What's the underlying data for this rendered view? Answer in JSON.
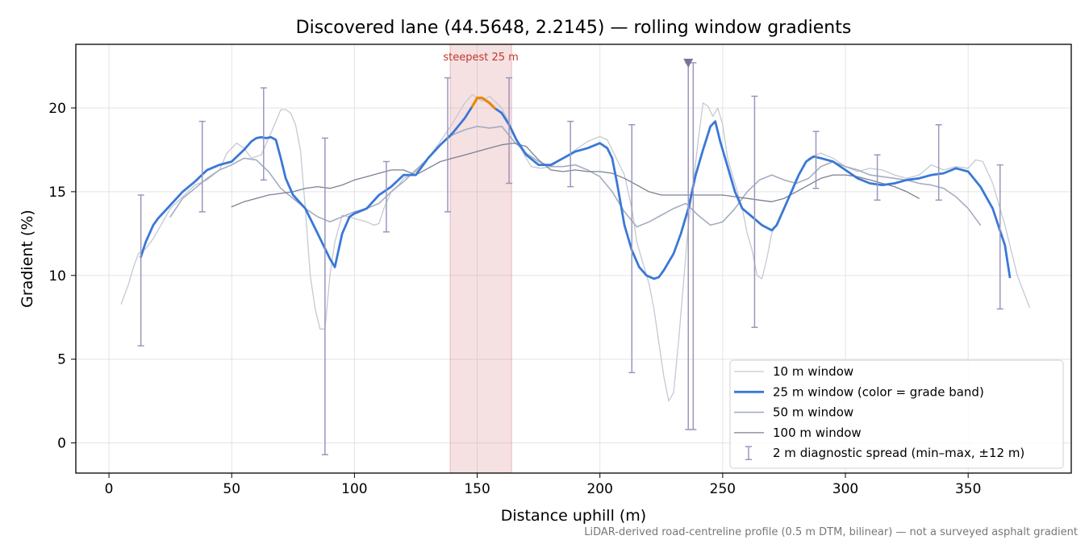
{
  "chart_data": {
    "type": "line",
    "title": "Discovered lane (44.5648, 2.2145) — rolling window gradients",
    "xlabel": "Distance uphill (m)",
    "ylabel": "Gradient (%)",
    "xlim": [
      -13.5,
      392
    ],
    "ylim": [
      -1.8,
      23.8
    ],
    "xticks": [
      0,
      50,
      100,
      150,
      200,
      250,
      300,
      350
    ],
    "yticks": [
      0,
      5,
      10,
      15,
      20
    ],
    "grid": true,
    "legend_position": "lower-right",
    "footnote": "LiDAR-derived road-centreline profile (0.5 m DTM, bilinear) — not a surveyed asphalt gradient",
    "highlight": {
      "x0": 139,
      "x1": 164,
      "label": "steepest 25 m",
      "color": "#d9838a"
    },
    "series": [
      {
        "name": "10 m window",
        "color": "#c4c9d4",
        "width": 1.3,
        "x": [
          5,
          8,
          10,
          12,
          15,
          18,
          20,
          25,
          30,
          35,
          40,
          45,
          48,
          52,
          55,
          58,
          62,
          66,
          68,
          70,
          72,
          74,
          76,
          78,
          80,
          82,
          84,
          86,
          88,
          90,
          92,
          95,
          100,
          105,
          108,
          110,
          112,
          115,
          118,
          120,
          125,
          130,
          135,
          140,
          145,
          148,
          150,
          152,
          155,
          160,
          165,
          168,
          172,
          176,
          180,
          185,
          190,
          195,
          200,
          203,
          205,
          210,
          213,
          215,
          218,
          220,
          222,
          224,
          226,
          228,
          230,
          232,
          234,
          236,
          238,
          240,
          242,
          244,
          246,
          248,
          250,
          252,
          255,
          258,
          260,
          262,
          264,
          266,
          268,
          270,
          275,
          280,
          285,
          290,
          295,
          300,
          305,
          310,
          315,
          320,
          325,
          330,
          335,
          340,
          345,
          350,
          353,
          356,
          360,
          365,
          370,
          375
        ],
        "y": [
          8.3,
          9.5,
          10.5,
          11.3,
          11.6,
          12.2,
          12.7,
          14.0,
          14.7,
          15.4,
          15.7,
          16.3,
          17.3,
          17.9,
          17.6,
          17.0,
          17.2,
          18.5,
          19.2,
          19.9,
          19.9,
          19.7,
          19.0,
          17.5,
          14.0,
          10.0,
          8.0,
          6.8,
          6.8,
          10.0,
          12.0,
          13.6,
          13.4,
          13.2,
          13.0,
          13.1,
          14.0,
          15.0,
          15.4,
          15.8,
          16.2,
          17.0,
          18.0,
          19.1,
          20.3,
          20.8,
          20.6,
          20.4,
          20.7,
          20.0,
          18.5,
          17.5,
          16.5,
          16.4,
          16.5,
          17.0,
          17.5,
          18.0,
          18.3,
          18.1,
          17.5,
          16.0,
          14.0,
          12.0,
          10.5,
          9.5,
          8.0,
          6.0,
          4.0,
          2.5,
          3.0,
          6.0,
          9.5,
          13.0,
          15.5,
          18.0,
          20.3,
          20.1,
          19.5,
          20.0,
          19.0,
          17.0,
          15.5,
          14.0,
          12.5,
          11.5,
          10.0,
          9.8,
          11.0,
          12.5,
          14.0,
          15.8,
          17.0,
          17.3,
          17.0,
          16.5,
          16.2,
          16.4,
          16.3,
          16.0,
          15.8,
          16.0,
          16.6,
          16.3,
          16.5,
          16.4,
          16.9,
          16.8,
          15.5,
          13.0,
          10.0,
          8.1
        ]
      },
      {
        "name": "25 m window (color = grade band)",
        "color": "#3a78d6",
        "width": 2.8,
        "x": [
          13,
          15,
          18,
          20,
          25,
          30,
          35,
          40,
          45,
          50,
          55,
          58,
          60,
          62,
          64,
          66,
          68,
          70,
          72,
          75,
          80,
          85,
          90,
          92,
          95,
          98,
          100,
          105,
          110,
          115,
          120,
          125,
          130,
          135,
          140,
          145,
          148,
          150,
          152,
          155,
          157,
          160,
          163,
          166,
          170,
          175,
          180,
          185,
          190,
          195,
          200,
          203,
          205,
          207,
          210,
          213,
          216,
          219,
          222,
          224,
          226,
          228,
          230,
          233,
          236,
          239,
          242,
          245,
          247,
          249,
          252,
          255,
          258,
          262,
          266,
          270,
          272,
          275,
          278,
          281,
          284,
          287,
          290,
          295,
          300,
          305,
          310,
          315,
          320,
          325,
          330,
          335,
          340,
          345,
          350,
          355,
          360,
          365,
          367
        ],
        "y": [
          11.1,
          12.0,
          13.0,
          13.4,
          14.2,
          15.0,
          15.6,
          16.3,
          16.6,
          16.8,
          17.5,
          18.0,
          18.2,
          18.25,
          18.2,
          18.25,
          18.1,
          17.0,
          15.8,
          14.8,
          14.0,
          12.5,
          11.0,
          10.5,
          12.5,
          13.5,
          13.7,
          14.0,
          14.8,
          15.3,
          16.0,
          16.0,
          17.0,
          17.8,
          18.5,
          19.4,
          20.1,
          20.6,
          20.6,
          20.3,
          20.0,
          19.7,
          19.0,
          18.1,
          17.2,
          16.6,
          16.6,
          17.0,
          17.4,
          17.6,
          17.9,
          17.6,
          17.0,
          15.5,
          13.0,
          11.5,
          10.5,
          10.0,
          9.8,
          9.9,
          10.3,
          10.8,
          11.3,
          12.5,
          14.0,
          16.0,
          17.5,
          18.9,
          19.2,
          18.0,
          16.5,
          15.0,
          14.0,
          13.5,
          13.0,
          12.7,
          13.0,
          14.0,
          15.0,
          16.0,
          16.8,
          17.1,
          17.0,
          16.8,
          16.3,
          15.8,
          15.5,
          15.4,
          15.5,
          15.7,
          15.8,
          16.0,
          16.1,
          16.4,
          16.2,
          15.3,
          14.0,
          11.8,
          9.9
        ]
      },
      {
        "name": "50 m window",
        "color": "#a4adc1",
        "width": 1.6,
        "x": [
          25,
          30,
          35,
          40,
          45,
          50,
          55,
          60,
          65,
          70,
          75,
          80,
          85,
          90,
          95,
          100,
          105,
          110,
          115,
          120,
          125,
          130,
          135,
          140,
          145,
          150,
          155,
          160,
          165,
          170,
          175,
          180,
          185,
          190,
          195,
          200,
          205,
          210,
          215,
          220,
          225,
          230,
          235,
          240,
          245,
          250,
          255,
          260,
          265,
          270,
          275,
          280,
          285,
          290,
          295,
          300,
          305,
          310,
          315,
          320,
          325,
          330,
          335,
          340,
          345,
          350,
          355
        ],
        "y": [
          13.5,
          14.6,
          15.2,
          15.8,
          16.3,
          16.6,
          17.0,
          16.9,
          16.2,
          15.2,
          14.6,
          14.0,
          13.5,
          13.2,
          13.5,
          13.8,
          14.0,
          14.3,
          15.0,
          15.6,
          16.3,
          17.0,
          17.8,
          18.4,
          18.7,
          18.9,
          18.8,
          18.9,
          18.0,
          17.3,
          16.8,
          16.5,
          16.5,
          16.6,
          16.3,
          15.9,
          15.0,
          13.8,
          12.9,
          13.2,
          13.6,
          14.0,
          14.3,
          13.6,
          13.0,
          13.2,
          14.0,
          15.0,
          15.7,
          16.0,
          15.7,
          15.5,
          15.8,
          16.5,
          16.8,
          16.5,
          16.3,
          16.0,
          15.9,
          15.8,
          15.7,
          15.5,
          15.4,
          15.2,
          14.7,
          14.0,
          13.0
        ]
      },
      {
        "name": "100 m window",
        "color": "#7a8191",
        "width": 1.3,
        "x": [
          50,
          55,
          60,
          65,
          70,
          75,
          80,
          85,
          90,
          95,
          100,
          105,
          110,
          115,
          120,
          125,
          130,
          135,
          140,
          145,
          150,
          155,
          160,
          165,
          170,
          175,
          180,
          185,
          190,
          195,
          200,
          205,
          210,
          215,
          220,
          225,
          230,
          235,
          240,
          245,
          250,
          255,
          260,
          265,
          270,
          275,
          280,
          285,
          290,
          295,
          300,
          305,
          310,
          315,
          320,
          325,
          330
        ],
        "y": [
          14.1,
          14.4,
          14.6,
          14.8,
          14.9,
          15.0,
          15.2,
          15.3,
          15.2,
          15.4,
          15.7,
          15.9,
          16.1,
          16.3,
          16.3,
          16.0,
          16.4,
          16.8,
          17.0,
          17.2,
          17.4,
          17.6,
          17.8,
          17.9,
          17.7,
          16.9,
          16.3,
          16.2,
          16.3,
          16.2,
          16.2,
          16.1,
          15.8,
          15.4,
          15.0,
          14.8,
          14.8,
          14.8,
          14.8,
          14.8,
          14.8,
          14.7,
          14.6,
          14.5,
          14.4,
          14.6,
          15.0,
          15.4,
          15.8,
          16.0,
          16.0,
          15.9,
          15.7,
          15.5,
          15.3,
          15.0,
          14.6
        ]
      }
    ],
    "orange_segment": {
      "color": "#e8890c",
      "x": [
        148,
        150,
        152,
        155,
        157
      ],
      "y": [
        20.1,
        20.6,
        20.6,
        20.3,
        20.0
      ]
    },
    "errorbars": {
      "name": "2 m diagnostic spread (min–max, ±12 m)",
      "color": "#9a97bd",
      "x": [
        13,
        38,
        63,
        88,
        113,
        138,
        163,
        188,
        213,
        236,
        238,
        263,
        288,
        313,
        338,
        363
      ],
      "low": [
        5.8,
        13.8,
        15.7,
        -0.7,
        12.6,
        13.8,
        15.5,
        15.3,
        4.2,
        0.8,
        0.8,
        6.9,
        15.2,
        14.5,
        14.5,
        8.0
      ],
      "high": [
        14.8,
        19.2,
        21.2,
        18.2,
        16.8,
        21.8,
        21.8,
        19.2,
        19.0,
        22.7,
        22.7,
        20.7,
        18.6,
        17.2,
        19.0,
        16.6
      ]
    },
    "marker": {
      "x": 236,
      "y": 22.7,
      "color": "#7e6f99"
    }
  }
}
